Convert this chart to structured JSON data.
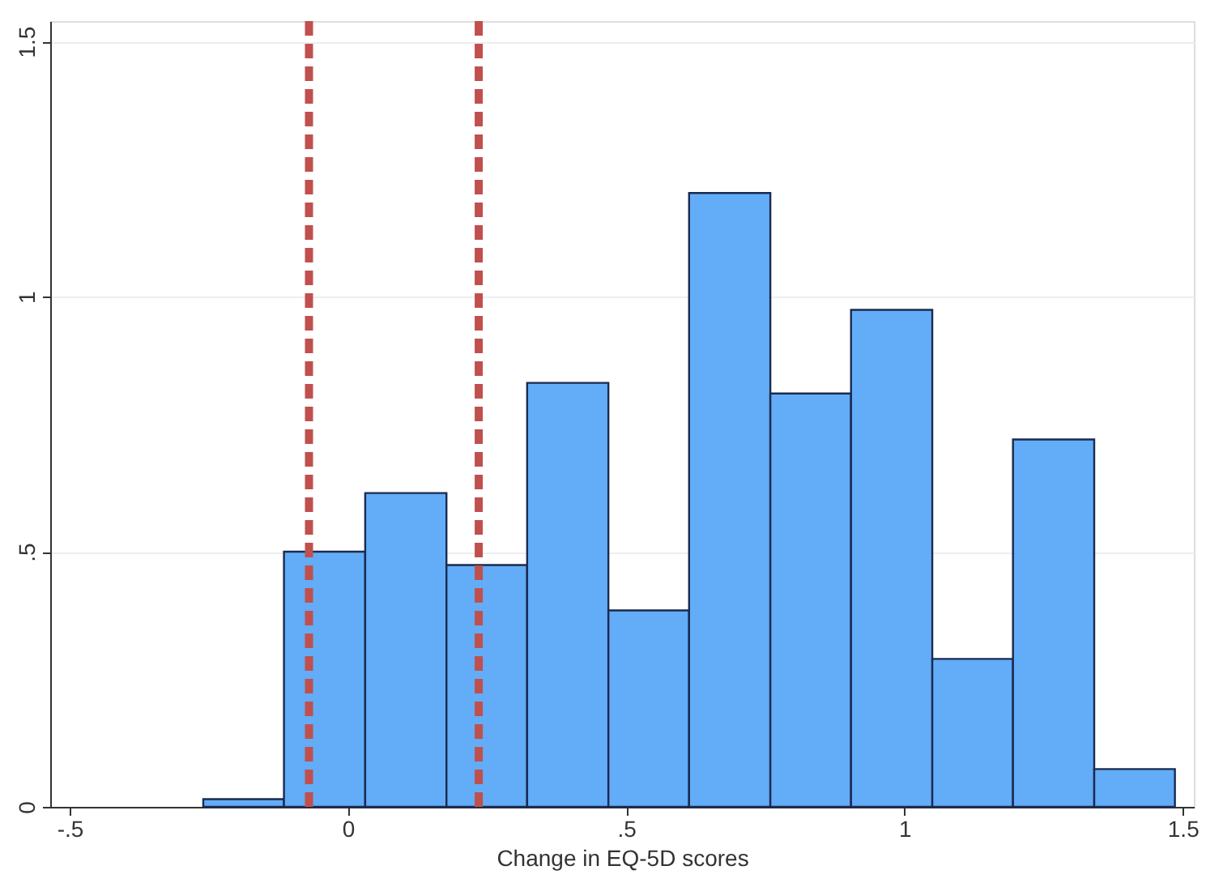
{
  "chart_data": {
    "type": "histogram",
    "xlabel": "Change in EQ-5D scores",
    "bins": [
      -0.26,
      -0.115,
      0.031,
      0.177,
      0.322,
      0.468,
      0.613,
      0.759,
      0.904,
      1.05,
      1.195,
      1.341,
      1.486
    ],
    "values": [
      0.015,
      0.5,
      0.615,
      0.474,
      0.831,
      0.385,
      1.203,
      0.81,
      0.974,
      0.29,
      0.72,
      0.074
    ],
    "color": "#63acf7",
    "xlim": [
      -0.535,
      1.52
    ],
    "ylim": [
      0,
      1.54
    ],
    "xticks": [
      {
        "value": -0.5,
        "label": "-.5"
      },
      0,
      {
        "value": 0.5,
        "label": ".5"
      },
      1,
      1.5
    ],
    "yticks": [
      0,
      {
        "value": 0.5,
        "label": ".5"
      },
      1,
      1.5
    ],
    "grid": "y",
    "ref_lines": [
      {
        "axis": "x",
        "value": -0.07,
        "color": "#c0504d",
        "line_style": "dashed"
      },
      {
        "axis": "x",
        "value": 0.235,
        "color": "#c0504d",
        "line_style": "dashed"
      }
    ]
  }
}
